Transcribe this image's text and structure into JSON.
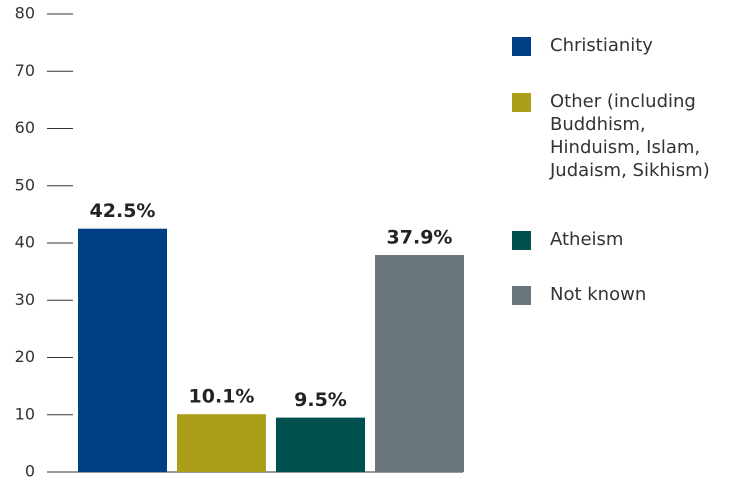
{
  "chart_data": {
    "type": "bar",
    "categories": [
      "Christianity",
      "Other (including Buddhism, Hinduism, Islam, Judaism, Sikhism)",
      "Atheism",
      "Not known"
    ],
    "values": [
      42.5,
      10.1,
      9.5,
      37.9
    ],
    "value_labels": [
      "42.5%",
      "10.1%",
      "9.5%",
      "37.9%"
    ],
    "colors": [
      "#003f86",
      "#ab9f1a",
      "#00504f",
      "#6a757c"
    ],
    "ylim": [
      0,
      80
    ],
    "yticks": [
      0,
      10,
      20,
      30,
      40,
      50,
      60,
      70,
      80
    ],
    "legend": "right"
  }
}
